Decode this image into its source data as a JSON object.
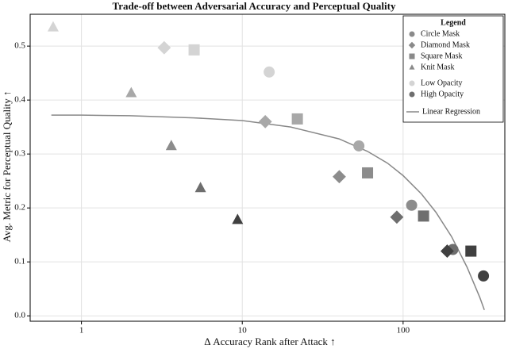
{
  "chart_data": {
    "type": "scatter",
    "title": "Trade-off between Adversarial Accuracy and Perceptual Quality",
    "xlabel": "Δ Accuracy Rank after Attack ↑",
    "ylabel": "Avg. Metric for Perceptual Quality ↑",
    "xscale": "log",
    "grid": true,
    "xlim": [
      0.48,
      429
    ],
    "ylim": [
      -0.01,
      0.559
    ],
    "xticks": [
      1,
      10,
      100
    ],
    "yticks": [
      {
        "value": 0,
        "label": "0.0"
      },
      0.1,
      0.2,
      0.3,
      0.4,
      0.5
    ],
    "legend_title": "Legend",
    "legend_position": "upper right",
    "series": [
      {
        "name": "Circle Mask",
        "marker": "circle",
        "color": "#8a8a8a",
        "x": [
          14.7,
          53.1,
          113,
          204,
          316
        ],
        "values": [
          0.452,
          0.315,
          0.205,
          0.123,
          0.074
        ],
        "colors": [
          "#d4d4d4",
          "#a8a8a8",
          "#8c8c8c",
          "#6e6e6e",
          "#404040"
        ]
      },
      {
        "name": "Diamond Mask",
        "marker": "diamond",
        "color": "#8a8a8a",
        "x": [
          3.27,
          13.9,
          40.1,
          91.4,
          188
        ],
        "values": [
          0.497,
          0.36,
          0.258,
          0.183,
          0.12
        ],
        "colors": [
          "#d4d4d4",
          "#a8a8a8",
          "#8c8c8c",
          "#6e6e6e",
          "#404040"
        ]
      },
      {
        "name": "Square Mask",
        "marker": "square",
        "color": "#8a8a8a",
        "x": [
          5.02,
          22.0,
          60.1,
          134,
          264
        ],
        "values": [
          0.493,
          0.365,
          0.265,
          0.185,
          0.12
        ],
        "colors": [
          "#d4d4d4",
          "#a8a8a8",
          "#8c8c8c",
          "#6e6e6e",
          "#404040"
        ]
      },
      {
        "name": "Knit Mask",
        "marker": "triangle",
        "color": "#8a8a8a",
        "x": [
          0.667,
          2.04,
          3.62,
          5.5,
          9.35
        ],
        "values": [
          0.535,
          0.413,
          0.315,
          0.237,
          0.178
        ],
        "colors": [
          "#d4d4d4",
          "#a8a8a8",
          "#8c8c8c",
          "#6e6e6e",
          "#404040"
        ]
      }
    ],
    "opacity_legend": [
      {
        "name": "Low Opacity",
        "color": "#d4d4d4"
      },
      {
        "name": "High Opacity",
        "color": "#6e6e6e"
      }
    ],
    "regression": {
      "name": "Linear Regression",
      "color": "#888888",
      "x": [
        0.65,
        1,
        2,
        5,
        10,
        20,
        40,
        60,
        80,
        100,
        130,
        160,
        200,
        250,
        300,
        320
      ],
      "values": [
        0.372,
        0.372,
        0.371,
        0.367,
        0.362,
        0.35,
        0.328,
        0.305,
        0.283,
        0.26,
        0.226,
        0.192,
        0.147,
        0.09,
        0.034,
        0.011
      ]
    }
  }
}
